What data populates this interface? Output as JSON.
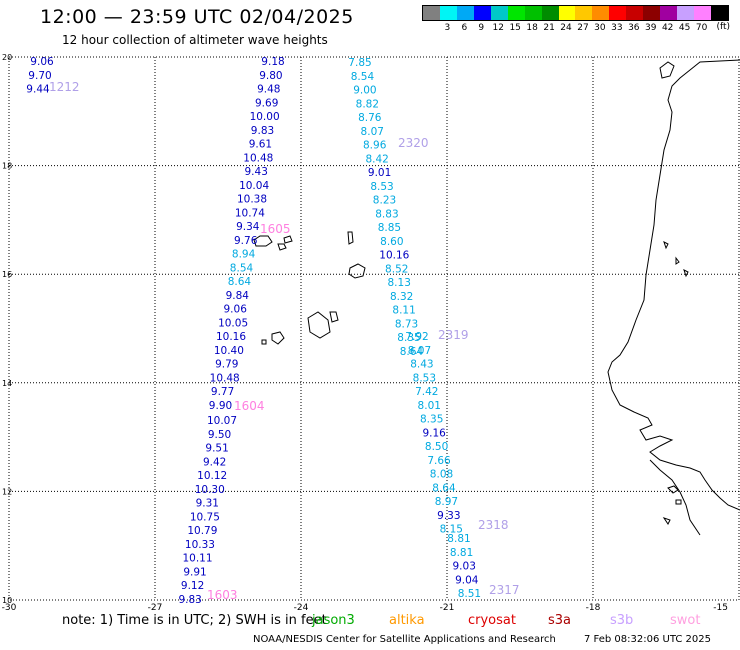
{
  "header": {
    "title": "12:00 — 23:59 UTC 02/04/2025",
    "subtitle": "12 hour collection of altimeter wave heights"
  },
  "legend": {
    "colors": [
      "#808080",
      "#00f5f5",
      "#00a9f5",
      "#0000ff",
      "#00c8c8",
      "#00e600",
      "#00c000",
      "#008c00",
      "#ffff00",
      "#ffc800",
      "#ff8c00",
      "#ff0000",
      "#c80000",
      "#8c0000",
      "#a000a0",
      "#c8a0ff",
      "#ff80ff",
      "#000000"
    ],
    "labels": [
      "3",
      "6",
      "9",
      "12",
      "15",
      "18",
      "21",
      "24",
      "27",
      "30",
      "33",
      "36",
      "39",
      "42",
      "45",
      "70"
    ],
    "unit": "(ft)"
  },
  "axes": {
    "lat_labels": [
      "20",
      "18",
      "16",
      "14",
      "12",
      "10"
    ],
    "lon_labels": [
      "-30",
      "-27",
      "-24",
      "-21",
      "-18",
      "-15"
    ]
  },
  "tracks": [
    {
      "id": "1212",
      "color": "#b0a0e8",
      "readings": [
        {
          "v": "9.06",
          "c": "#0000c0"
        },
        {
          "v": "9.70",
          "c": "#0000c0"
        },
        {
          "v": "9.44",
          "c": "#0000c0"
        }
      ]
    },
    {
      "id": "1605",
      "color": "#ff80e0",
      "readings": [
        {
          "v": "9.18",
          "c": "#0000c0"
        },
        {
          "v": "9.80",
          "c": "#0000c0"
        },
        {
          "v": "9.48",
          "c": "#0000c0"
        },
        {
          "v": "9.69",
          "c": "#0000c0"
        },
        {
          "v": "10.00",
          "c": "#0000c0"
        },
        {
          "v": "9.83",
          "c": "#0000c0"
        },
        {
          "v": "9.61",
          "c": "#0000c0"
        },
        {
          "v": "10.48",
          "c": "#0000c0"
        },
        {
          "v": "9.43",
          "c": "#0000c0"
        },
        {
          "v": "10.04",
          "c": "#0000c0"
        },
        {
          "v": "10.38",
          "c": "#0000c0"
        },
        {
          "v": "10.74",
          "c": "#0000c0"
        },
        {
          "v": "9.34",
          "c": "#0000c0"
        },
        {
          "v": "9.76",
          "c": "#0000c0"
        },
        {
          "v": "8.94",
          "c": "#00a9e0"
        },
        {
          "v": "8.54",
          "c": "#00a9e0"
        },
        {
          "v": "8.64",
          "c": "#00a9e0"
        },
        {
          "v": "9.84",
          "c": "#0000c0"
        },
        {
          "v": "9.06",
          "c": "#0000c0"
        },
        {
          "v": "10.05",
          "c": "#0000c0"
        },
        {
          "v": "10.16",
          "c": "#0000c0"
        },
        {
          "v": "10.40",
          "c": "#0000c0"
        },
        {
          "v": "9.79",
          "c": "#0000c0"
        },
        {
          "v": "10.48",
          "c": "#0000c0"
        },
        {
          "v": "9.77",
          "c": "#0000c0"
        },
        {
          "v": "9.90",
          "c": "#0000c0"
        }
      ]
    },
    {
      "id": "1604",
      "color": "#ff80e0",
      "readings": [
        {
          "v": "10.07",
          "c": "#0000c0"
        },
        {
          "v": "9.50",
          "c": "#0000c0"
        },
        {
          "v": "9.51",
          "c": "#0000c0"
        },
        {
          "v": "9.42",
          "c": "#0000c0"
        },
        {
          "v": "10.12",
          "c": "#0000c0"
        },
        {
          "v": "10.30",
          "c": "#0000c0"
        },
        {
          "v": "9.31",
          "c": "#0000c0"
        },
        {
          "v": "10.75",
          "c": "#0000c0"
        },
        {
          "v": "10.79",
          "c": "#0000c0"
        },
        {
          "v": "10.33",
          "c": "#0000c0"
        },
        {
          "v": "10.11",
          "c": "#0000c0"
        },
        {
          "v": "9.91",
          "c": "#0000c0"
        },
        {
          "v": "9.12",
          "c": "#0000c0"
        },
        {
          "v": "9.83",
          "c": "#0000c0"
        }
      ]
    },
    {
      "id": "1603",
      "color": "#ff80e0",
      "readings": []
    },
    {
      "id": "2320",
      "color": "#b0a0e8",
      "readings": [
        {
          "v": "7.85",
          "c": "#00a9e0"
        },
        {
          "v": "8.54",
          "c": "#00a9e0"
        },
        {
          "v": "9.00",
          "c": "#00a9e0"
        },
        {
          "v": "8.82",
          "c": "#00a9e0"
        },
        {
          "v": "8.76",
          "c": "#00a9e0"
        },
        {
          "v": "8.07",
          "c": "#00a9e0"
        },
        {
          "v": "8.96",
          "c": "#00a9e0"
        },
        {
          "v": "8.42",
          "c": "#00a9e0"
        },
        {
          "v": "9.01",
          "c": "#0000c0"
        },
        {
          "v": "8.53",
          "c": "#00a9e0"
        },
        {
          "v": "8.23",
          "c": "#00a9e0"
        },
        {
          "v": "8.83",
          "c": "#00a9e0"
        },
        {
          "v": "8.85",
          "c": "#00a9e0"
        },
        {
          "v": "8.60",
          "c": "#00a9e0"
        },
        {
          "v": "10.16",
          "c": "#0000c0"
        },
        {
          "v": "8.52",
          "c": "#00a9e0"
        },
        {
          "v": "8.13",
          "c": "#00a9e0"
        },
        {
          "v": "8.32",
          "c": "#00a9e0"
        },
        {
          "v": "8.11",
          "c": "#00a9e0"
        },
        {
          "v": "8.73",
          "c": "#00a9e0"
        },
        {
          "v": "8.35",
          "c": "#00a9e0"
        },
        {
          "v": "8.64",
          "c": "#00a9e0"
        }
      ]
    },
    {
      "id": "2319",
      "color": "#b0a0e8",
      "readings": [
        {
          "v": "7.92",
          "c": "#00a9e0"
        },
        {
          "v": "8.07",
          "c": "#00a9e0"
        },
        {
          "v": "8.43",
          "c": "#00a9e0"
        },
        {
          "v": "8.53",
          "c": "#00a9e0"
        },
        {
          "v": "7.42",
          "c": "#00a9e0"
        },
        {
          "v": "8.01",
          "c": "#00a9e0"
        },
        {
          "v": "8.35",
          "c": "#00a9e0"
        },
        {
          "v": "9.16",
          "c": "#0000c0"
        },
        {
          "v": "8.50",
          "c": "#00a9e0"
        },
        {
          "v": "7.66",
          "c": "#00a9e0"
        },
        {
          "v": "8.08",
          "c": "#00a9e0"
        },
        {
          "v": "8.64",
          "c": "#00a9e0"
        },
        {
          "v": "8.97",
          "c": "#00a9e0"
        },
        {
          "v": "9.33",
          "c": "#0000c0"
        },
        {
          "v": "8.15",
          "c": "#00a9e0"
        }
      ]
    },
    {
      "id": "2318",
      "color": "#b0a0e8",
      "readings": [
        {
          "v": "8.81",
          "c": "#00a9e0"
        },
        {
          "v": "8.81",
          "c": "#00a9e0"
        },
        {
          "v": "9.03",
          "c": "#0000c0"
        },
        {
          "v": "9.04",
          "c": "#0000c0"
        },
        {
          "v": "8.51",
          "c": "#00a9e0"
        }
      ]
    },
    {
      "id": "2317",
      "color": "#b0a0e8",
      "readings": []
    }
  ],
  "footer": {
    "note": "note:  1) Time is in UTC;  2) SWH is in feet",
    "satellites": [
      {
        "name": "jason3",
        "color": "#00aa00"
      },
      {
        "name": "altika",
        "color": "#ff9900"
      },
      {
        "name": "cryosat",
        "color": "#dd0000"
      },
      {
        "name": "s3a",
        "color": "#aa0000"
      },
      {
        "name": "s3b",
        "color": "#c8a0ff"
      },
      {
        "name": "swot",
        "color": "#ffa0e0"
      }
    ],
    "credit": "NOAA/NESDIS Center for Satellite Applications and Research",
    "timestamp": "7 Feb 08:32:06 UTC 2025"
  }
}
